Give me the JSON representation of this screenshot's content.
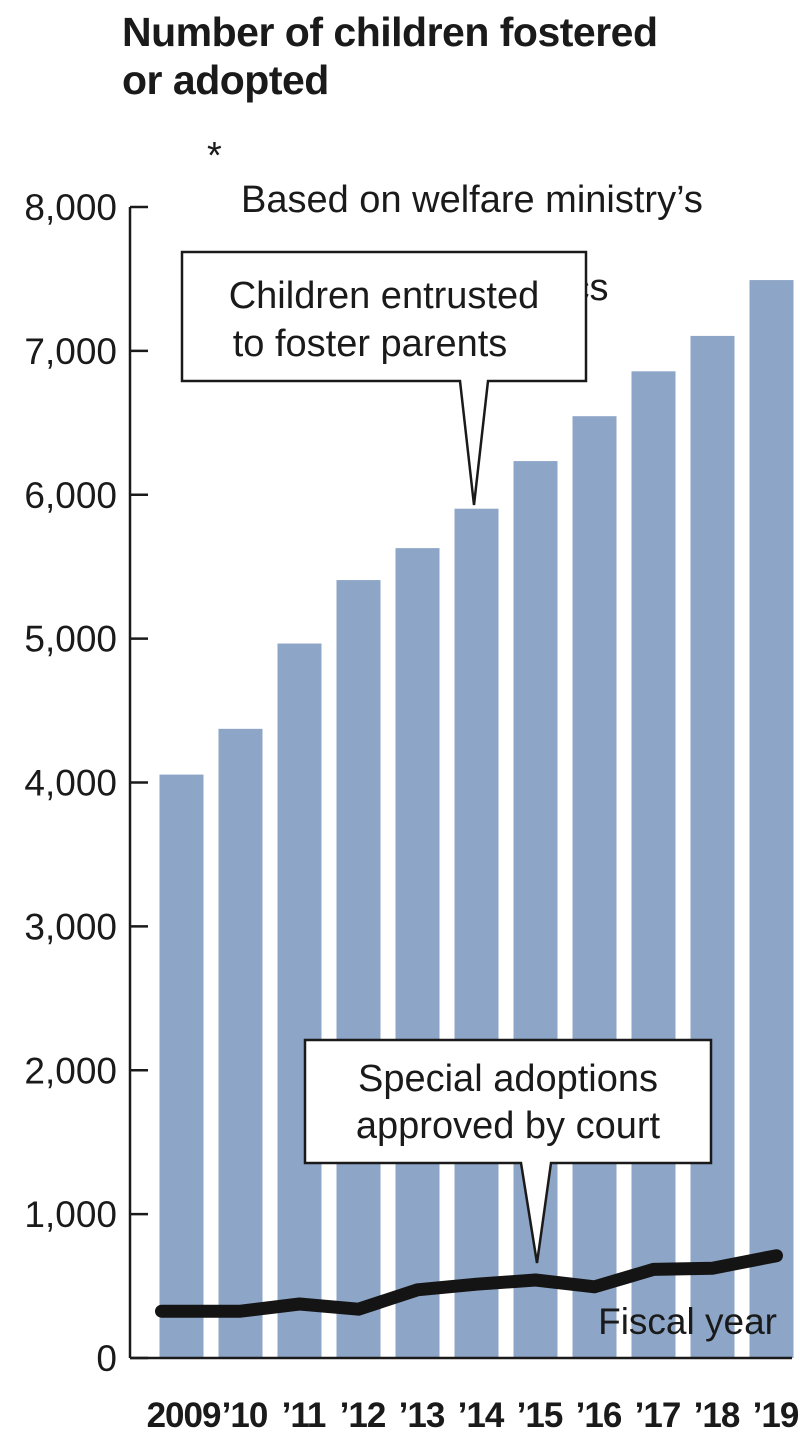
{
  "chart_data": {
    "type": "bar",
    "title_lines": [
      "Number of children fostered",
      "or adopted"
    ],
    "note_marker": "*",
    "note_lines": [
      "Based on welfare ministry’s",
      "data, judicial statistics"
    ],
    "xlabel": "Fiscal year",
    "ylabel": "",
    "ylim": [
      0,
      8000
    ],
    "yticks": [
      0,
      1000,
      2000,
      3000,
      4000,
      5000,
      6000,
      7000,
      8000
    ],
    "ytick_labels": [
      "0",
      "1,000",
      "2,000",
      "3,000",
      "4,000",
      "5,000",
      "6,000",
      "7,000",
      "8,000"
    ],
    "categories": [
      "2009",
      "’10",
      "’11",
      "’12",
      "’13",
      "’14",
      "’15",
      "’16",
      "’17",
      "’18",
      "’19"
    ],
    "series": [
      {
        "name": "Children entrusted to foster parents",
        "label_lines": [
          "Children entrusted",
          "to foster parents"
        ],
        "type": "bar",
        "color": "#8da5c6",
        "values": [
          4055,
          4373,
          4966,
          5407,
          5629,
          5903,
          6234,
          6546,
          6858,
          7104,
          7492
        ]
      },
      {
        "name": "Special adoptions approved by court",
        "label_lines": [
          "Special adoptions",
          "approved by court"
        ],
        "type": "line",
        "color": "#141414",
        "values": [
          325,
          325,
          375,
          339,
          474,
          513,
          542,
          495,
          616,
          624,
          711
        ]
      }
    ],
    "grid": false,
    "legend": "callouts"
  }
}
